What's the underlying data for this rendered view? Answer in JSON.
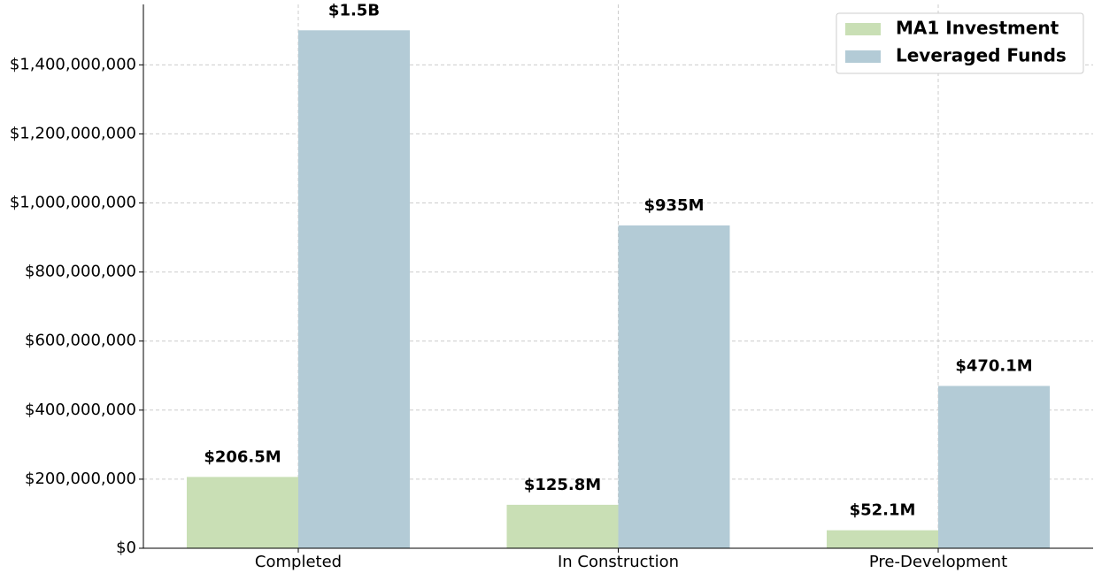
{
  "chart_data": {
    "type": "bar",
    "categories": [
      "Completed",
      "In Construction",
      "Pre-Development"
    ],
    "series": [
      {
        "name": "MA1 Investment",
        "color": "#c9dfb5",
        "values": [
          206500000,
          125800000,
          52100000
        ],
        "value_labels": [
          "$206.5M",
          "$125.8M",
          "$52.1M"
        ]
      },
      {
        "name": "Leveraged Funds",
        "color": "#b3cbd6",
        "values": [
          1500000000,
          935000000,
          470100000
        ],
        "value_labels": [
          "$1.5B",
          "$935M",
          "$470.1M"
        ]
      }
    ],
    "ylim": [
      0,
      1575000000
    ],
    "yticks": [
      {
        "value": 0,
        "label": "$0"
      },
      {
        "value": 200000000,
        "label": "$200,000,000"
      },
      {
        "value": 400000000,
        "label": "$400,000,000"
      },
      {
        "value": 600000000,
        "label": "$600,000,000"
      },
      {
        "value": 800000000,
        "label": "$800,000,000"
      },
      {
        "value": 1000000000,
        "label": "$1,000,000,000"
      },
      {
        "value": 1200000000,
        "label": "$1,200,000,000"
      },
      {
        "value": 1400000000,
        "label": "$1,400,000,000"
      }
    ],
    "grid": true,
    "legend": "upper right"
  }
}
